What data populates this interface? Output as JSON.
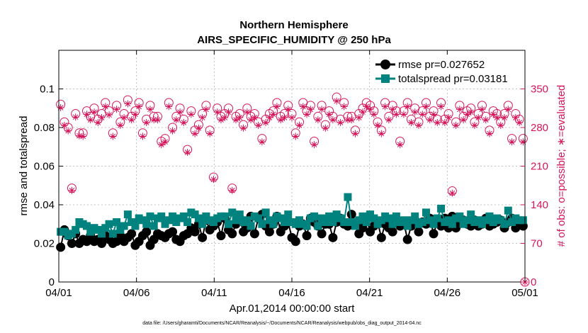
{
  "chart_data": {
    "type": "line",
    "title": "Northern Hemisphere",
    "subtitle": "AIRS_SPECIFIC_HUMIDITY @ 250 hPa",
    "xlabel": "Apr.01,2014 00:00:00 start",
    "ylabel_left": "rmse and totalspread",
    "ylabel_right": "# of obs: o=possible; ∗=evaluated",
    "footnote": "data file: /Users/gharamti/Documents/NCAR/Reanalysis/~/Documents/NCAR/Reanalysis/webpub/obs_diag_output_2014-04.nc",
    "x_range_days": [
      0,
      30
    ],
    "ylim_left": [
      0,
      0.12
    ],
    "ylim_right": [
      0,
      420
    ],
    "x_ticks": [
      {
        "value": 0,
        "label": "04/01"
      },
      {
        "value": 5,
        "label": "04/06"
      },
      {
        "value": 10,
        "label": "04/11"
      },
      {
        "value": 15,
        "label": "04/16"
      },
      {
        "value": 20,
        "label": "04/21"
      },
      {
        "value": 25,
        "label": "04/26"
      },
      {
        "value": 30,
        "label": "05/01"
      }
    ],
    "y_left_ticks": [
      {
        "value": 0,
        "label": "0"
      },
      {
        "value": 0.02,
        "label": "0.02"
      },
      {
        "value": 0.04,
        "label": "0.04"
      },
      {
        "value": 0.06,
        "label": "0.06"
      },
      {
        "value": 0.08,
        "label": "0.08"
      },
      {
        "value": 0.1,
        "label": "0.1"
      }
    ],
    "y_right_ticks": [
      {
        "value": 0,
        "label": "0"
      },
      {
        "value": 70,
        "label": "70"
      },
      {
        "value": 140,
        "label": "140"
      },
      {
        "value": 210,
        "label": "210"
      },
      {
        "value": 280,
        "label": "280"
      },
      {
        "value": 350,
        "label": "350"
      }
    ],
    "legend": [
      {
        "name": "rmse pr=0.027652",
        "color": "#000000",
        "marker": "circle"
      },
      {
        "name": "totalspread pr=0.03181",
        "color": "#00827f",
        "marker": "square"
      }
    ],
    "colors": {
      "rmse": "#000000",
      "totalspread": "#00827f",
      "obs": "#d4145a"
    },
    "rmse": [
      0.018,
      0.027,
      0.024,
      0.02,
      0.025,
      0.02,
      0.022,
      0.021,
      0.024,
      0.021,
      0.022,
      0.02,
      0.024,
      0.022,
      0.02,
      0.021,
      0.024,
      0.021,
      0.023,
      0.025,
      0.019,
      0.021,
      0.024,
      0.026,
      0.019,
      0.022,
      0.025,
      0.024,
      0.023,
      0.025,
      0.026,
      0.022,
      0.021,
      0.024,
      0.025,
      0.028,
      0.026,
      0.03,
      0.023,
      0.032,
      0.027,
      0.029,
      0.031,
      0.024,
      0.033,
      0.027,
      0.025,
      0.03,
      0.033,
      0.026,
      0.028,
      0.034,
      0.025,
      0.033,
      0.035,
      0.029,
      0.026,
      0.03,
      0.034,
      0.026,
      0.029,
      0.031,
      0.023,
      0.021,
      0.029,
      0.03,
      0.024,
      0.033,
      0.031,
      0.029,
      0.025,
      0.03,
      0.03,
      0.023,
      0.031,
      0.033,
      0.03,
      0.029,
      0.035,
      0.03,
      0.025,
      0.028,
      0.033,
      0.026,
      0.029,
      0.031,
      0.023,
      0.03,
      0.028,
      0.026,
      0.032,
      0.029,
      0.031,
      0.022,
      0.029,
      0.032,
      0.026,
      0.031,
      0.03,
      0.033,
      0.025,
      0.031,
      0.029,
      0.033,
      0.028,
      0.034,
      0.028,
      0.031,
      0.032,
      0.03,
      0.029,
      0.032,
      0.029,
      0.03,
      0.033,
      0.029,
      0.03,
      0.031,
      0.032,
      0.028,
      0.031,
      0.033,
      0.028,
      0.03,
      0.029
    ],
    "totalspread": [
      0.026,
      0.026,
      0.024,
      0.025,
      0.027,
      0.031,
      0.03,
      0.029,
      0.026,
      0.028,
      0.027,
      0.025,
      0.028,
      0.03,
      0.025,
      0.031,
      0.027,
      0.029,
      0.035,
      0.031,
      0.029,
      0.033,
      0.032,
      0.03,
      0.034,
      0.029,
      0.033,
      0.034,
      0.03,
      0.032,
      0.034,
      0.031,
      0.033,
      0.034,
      0.031,
      0.036,
      0.035,
      0.033,
      0.03,
      0.034,
      0.032,
      0.031,
      0.033,
      0.034,
      0.034,
      0.03,
      0.036,
      0.032,
      0.035,
      0.031,
      0.032,
      0.029,
      0.034,
      0.033,
      0.03,
      0.036,
      0.032,
      0.03,
      0.034,
      0.033,
      0.031,
      0.035,
      0.031,
      0.03,
      0.032,
      0.03,
      0.029,
      0.033,
      0.034,
      0.029,
      0.033,
      0.031,
      0.034,
      0.031,
      0.035,
      0.033,
      0.031,
      0.044,
      0.031,
      0.029,
      0.032,
      0.034,
      0.031,
      0.035,
      0.033,
      0.03,
      0.032,
      0.034,
      0.033,
      0.03,
      0.034,
      0.031,
      0.032,
      0.029,
      0.032,
      0.034,
      0.03,
      0.031,
      0.036,
      0.032,
      0.03,
      0.033,
      0.038,
      0.031,
      0.032,
      0.03,
      0.033,
      0.034,
      0.03,
      0.032,
      0.035,
      0.031,
      0.032,
      0.03,
      0.032,
      0.034,
      0.031,
      0.033,
      0.032,
      0.03,
      0.037,
      0.031,
      0.033,
      0.032,
      0.032
    ],
    "obs_possible": [
      322,
      290,
      280,
      170,
      305,
      270,
      270,
      310,
      300,
      315,
      295,
      305,
      325,
      310,
      270,
      320,
      290,
      305,
      330,
      300,
      310,
      325,
      270,
      295,
      320,
      300,
      300,
      255,
      260,
      325,
      280,
      300,
      315,
      295,
      240,
      310,
      275,
      285,
      305,
      320,
      275,
      190,
      315,
      300,
      305,
      315,
      170,
      300,
      305,
      285,
      315,
      300,
      305,
      290,
      260,
      295,
      305,
      310,
      325,
      300,
      305,
      320,
      305,
      270,
      290,
      325,
      310,
      320,
      255,
      300,
      320,
      285,
      310,
      300,
      335,
      295,
      325,
      300,
      300,
      275,
      305,
      315,
      325,
      320,
      310,
      290,
      275,
      325,
      300,
      320,
      310,
      255,
      310,
      325,
      295,
      315,
      290,
      310,
      325,
      300,
      310,
      295,
      325,
      295,
      305,
      165,
      290,
      320,
      300,
      310,
      315,
      290,
      305,
      320,
      300,
      275,
      310,
      305,
      290,
      305,
      320,
      260,
      305,
      295,
      260
    ],
    "obs_evaluated": [
      316,
      284,
      274,
      166,
      299,
      265,
      264,
      304,
      294,
      308,
      289,
      298,
      318,
      303,
      264,
      313,
      284,
      298,
      323,
      294,
      304,
      318,
      264,
      289,
      313,
      294,
      294,
      249,
      254,
      318,
      274,
      294,
      308,
      289,
      235,
      304,
      269,
      279,
      298,
      313,
      269,
      186,
      308,
      294,
      298,
      308,
      166,
      294,
      298,
      279,
      308,
      294,
      298,
      284,
      254,
      289,
      298,
      304,
      318,
      294,
      298,
      313,
      298,
      264,
      284,
      318,
      304,
      313,
      249,
      294,
      313,
      279,
      304,
      294,
      328,
      289,
      318,
      294,
      294,
      269,
      298,
      308,
      318,
      313,
      304,
      284,
      269,
      318,
      294,
      313,
      304,
      249,
      304,
      318,
      289,
      308,
      284,
      304,
      318,
      294,
      304,
      289,
      318,
      289,
      298,
      161,
      284,
      313,
      294,
      304,
      308,
      284,
      298,
      313,
      294,
      269,
      304,
      298,
      284,
      298,
      313,
      254,
      298,
      289,
      254
    ],
    "obs_possible_final": 0
  }
}
